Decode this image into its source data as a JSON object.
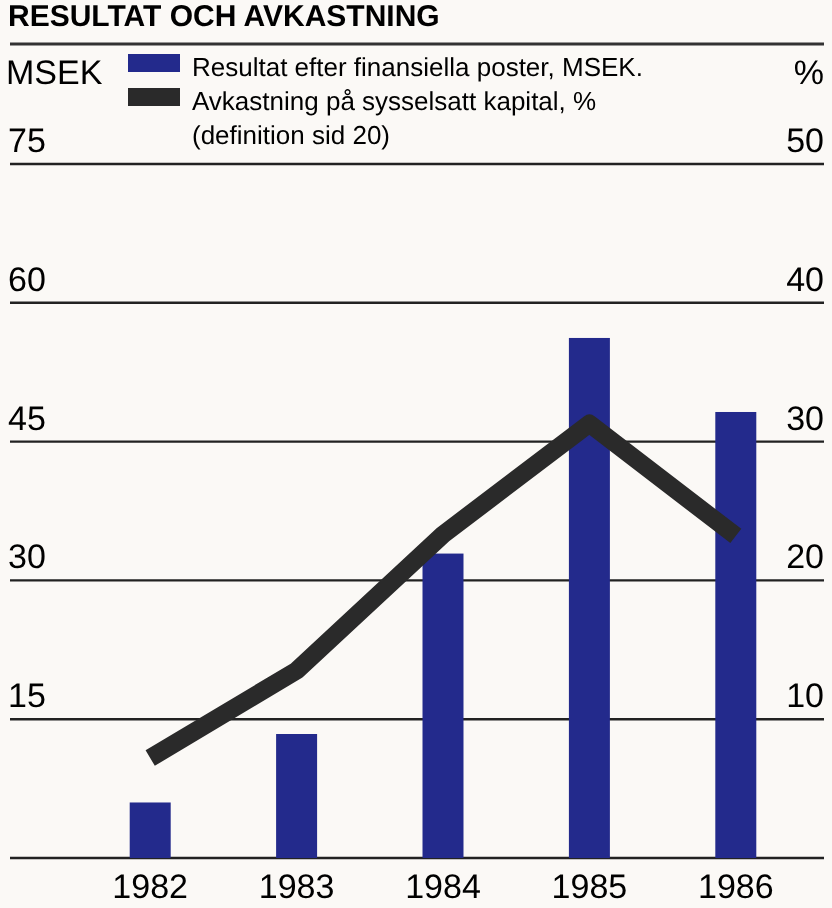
{
  "chart_data": {
    "type": "bar",
    "title": "RESULTAT OCH AVKASTNING",
    "ylabel": "MSEK",
    "y2label": "%",
    "categories": [
      "1982",
      "1983",
      "1984",
      "1985",
      "1986"
    ],
    "series": [
      {
        "name": "Resultat efter finansiella poster, MSEK.",
        "color": "#232a8c",
        "values": [
          6,
          13.4,
          32.9,
          56.2,
          48.2
        ]
      },
      {
        "name": "Avkastning på sysselsatt kapital, % (definition sid 20)",
        "type": "line",
        "axis": "y2",
        "color": "#2a2a2a",
        "values": [
          7.2,
          13.5,
          23.3,
          31.3,
          23.2
        ]
      }
    ],
    "ylim": [
      0,
      75
    ],
    "yticks": [
      15,
      30,
      45,
      60,
      75
    ],
    "y2lim": [
      0,
      50
    ],
    "y2ticks": [
      10,
      20,
      30,
      40,
      50
    ],
    "grid": "y",
    "legend": "top"
  }
}
